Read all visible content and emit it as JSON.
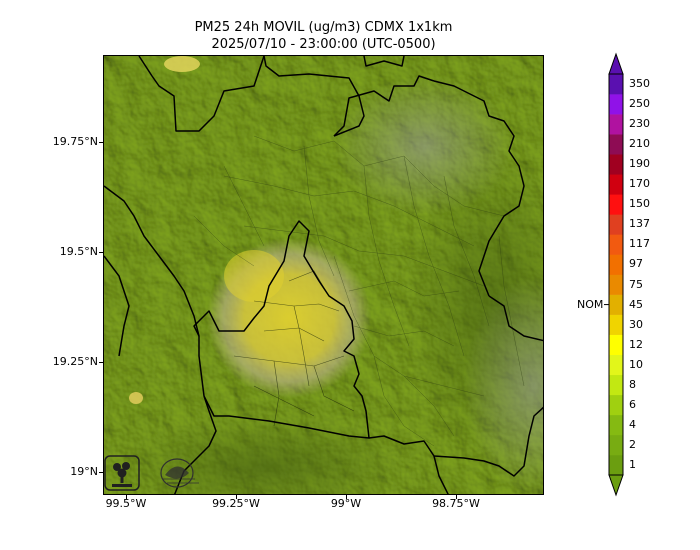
{
  "title_line1": "PM25 24h MOVIL (ug/m3) CDMX 1x1km",
  "title_line2": "2025/07/10 - 23:00:00 (UTC-0500)",
  "lat_labels": [
    "19.75°N",
    "19.5°N",
    "19.25°N",
    "19°N"
  ],
  "lon_labels": [
    "99.5°W",
    "99.25°W",
    "99°W",
    "98.75°W"
  ],
  "colorbar": {
    "levels": [
      "1",
      "2",
      "4",
      "6",
      "8",
      "10",
      "12",
      "30",
      "45",
      "75",
      "97",
      "117",
      "137",
      "150",
      "170",
      "190",
      "210",
      "230",
      "250",
      "350"
    ],
    "colors": [
      "#6b9e10",
      "#78ac12",
      "#85ba12",
      "#a0d010",
      "#c2e812",
      "#e2f61a",
      "#ffff00",
      "#f0d400",
      "#e2b000",
      "#ea8a00",
      "#f27000",
      "#f25a10",
      "#e04020",
      "#ff1010",
      "#d00010",
      "#a00020",
      "#8e0c54",
      "#b012a0",
      "#9012e8",
      "#5a10b0"
    ],
    "nom_label": "NOM"
  },
  "map_colors": {
    "base": "#7ea21e",
    "dark": "#4e6e10",
    "light": "#a8c83a",
    "plume": "#d8cc30",
    "plume_edge": "#c8b888"
  },
  "logos": {
    "left_icon": "sedema-logo-icon",
    "right_icon": "aire-cdmx-logo-icon"
  }
}
